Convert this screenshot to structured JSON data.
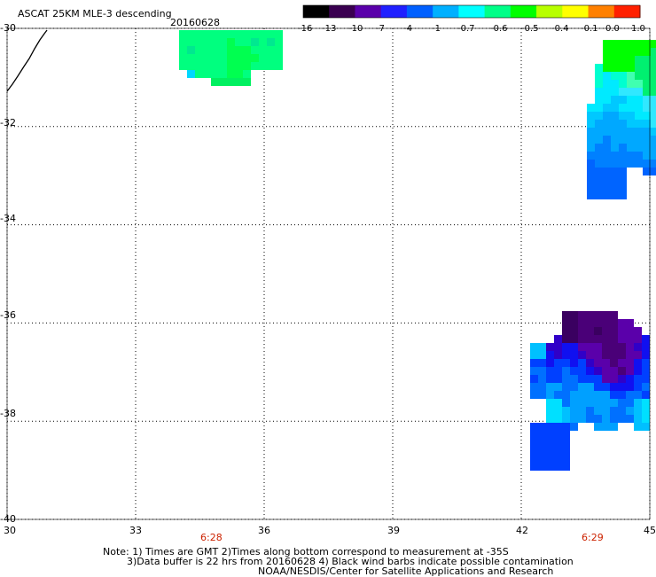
{
  "header": {
    "title": "ASCAT 25KM MLE-3 descending",
    "date": "20160628"
  },
  "colorbar": {
    "labels": [
      "-16",
      "-13",
      "-10",
      "-7",
      "-4",
      "-1",
      "-0.7",
      "-0.6",
      "-0.5",
      "-0.4",
      "-0.1",
      "0.0",
      "1.0"
    ],
    "colors": [
      "#000000",
      "#3a0050",
      "#5a00aa",
      "#2020ff",
      "#0060ff",
      "#00b0ff",
      "#00ffff",
      "#00ff88",
      "#00ff00",
      "#b8ff00",
      "#ffff00",
      "#ff8000",
      "#ff2000"
    ]
  },
  "axes": {
    "lat_labels": [
      "-30",
      "-32",
      "-34",
      "-36",
      "-38",
      "-40"
    ],
    "lon_labels": [
      "30",
      "33",
      "36",
      "39",
      "42",
      "45"
    ],
    "lat_range": [
      -40,
      -30
    ],
    "lon_range": [
      30,
      45
    ],
    "grid": "dotted"
  },
  "time_labels": [
    "6:28",
    "6:29"
  ],
  "notes": {
    "line1": "Note: 1) Times are GMT 2)Times along bottom correspond to measurement at -35S",
    "line2": "3)Data buffer is 22 hrs from 20160628 4) Black wind barbs indicate possible contamination",
    "line3": "NOAA/NESDIS/Center for Satellite Applications and Research"
  },
  "chart_data": {
    "type": "heatmap",
    "title": "ASCAT 25KM MLE-3 descending",
    "xlabel": "",
    "ylabel": "",
    "xlim": [
      30,
      45
    ],
    "ylim": [
      -40,
      -30
    ],
    "patches": [
      {
        "region": "north-west",
        "lon": [
          33.9,
          36.7
        ],
        "lat": [
          -30.9,
          -30.1
        ],
        "value_class": "-0.6"
      },
      {
        "region": "north-east",
        "lon": [
          43.0,
          44.9
        ],
        "lat": [
          -33.7,
          -30.2
        ],
        "value_class": "-1 to -0.5"
      },
      {
        "region": "south-east",
        "lon": [
          41.8,
          44.9
        ],
        "lat": [
          -39.3,
          -35.9
        ],
        "value_class": "-13 to -1"
      }
    ]
  }
}
